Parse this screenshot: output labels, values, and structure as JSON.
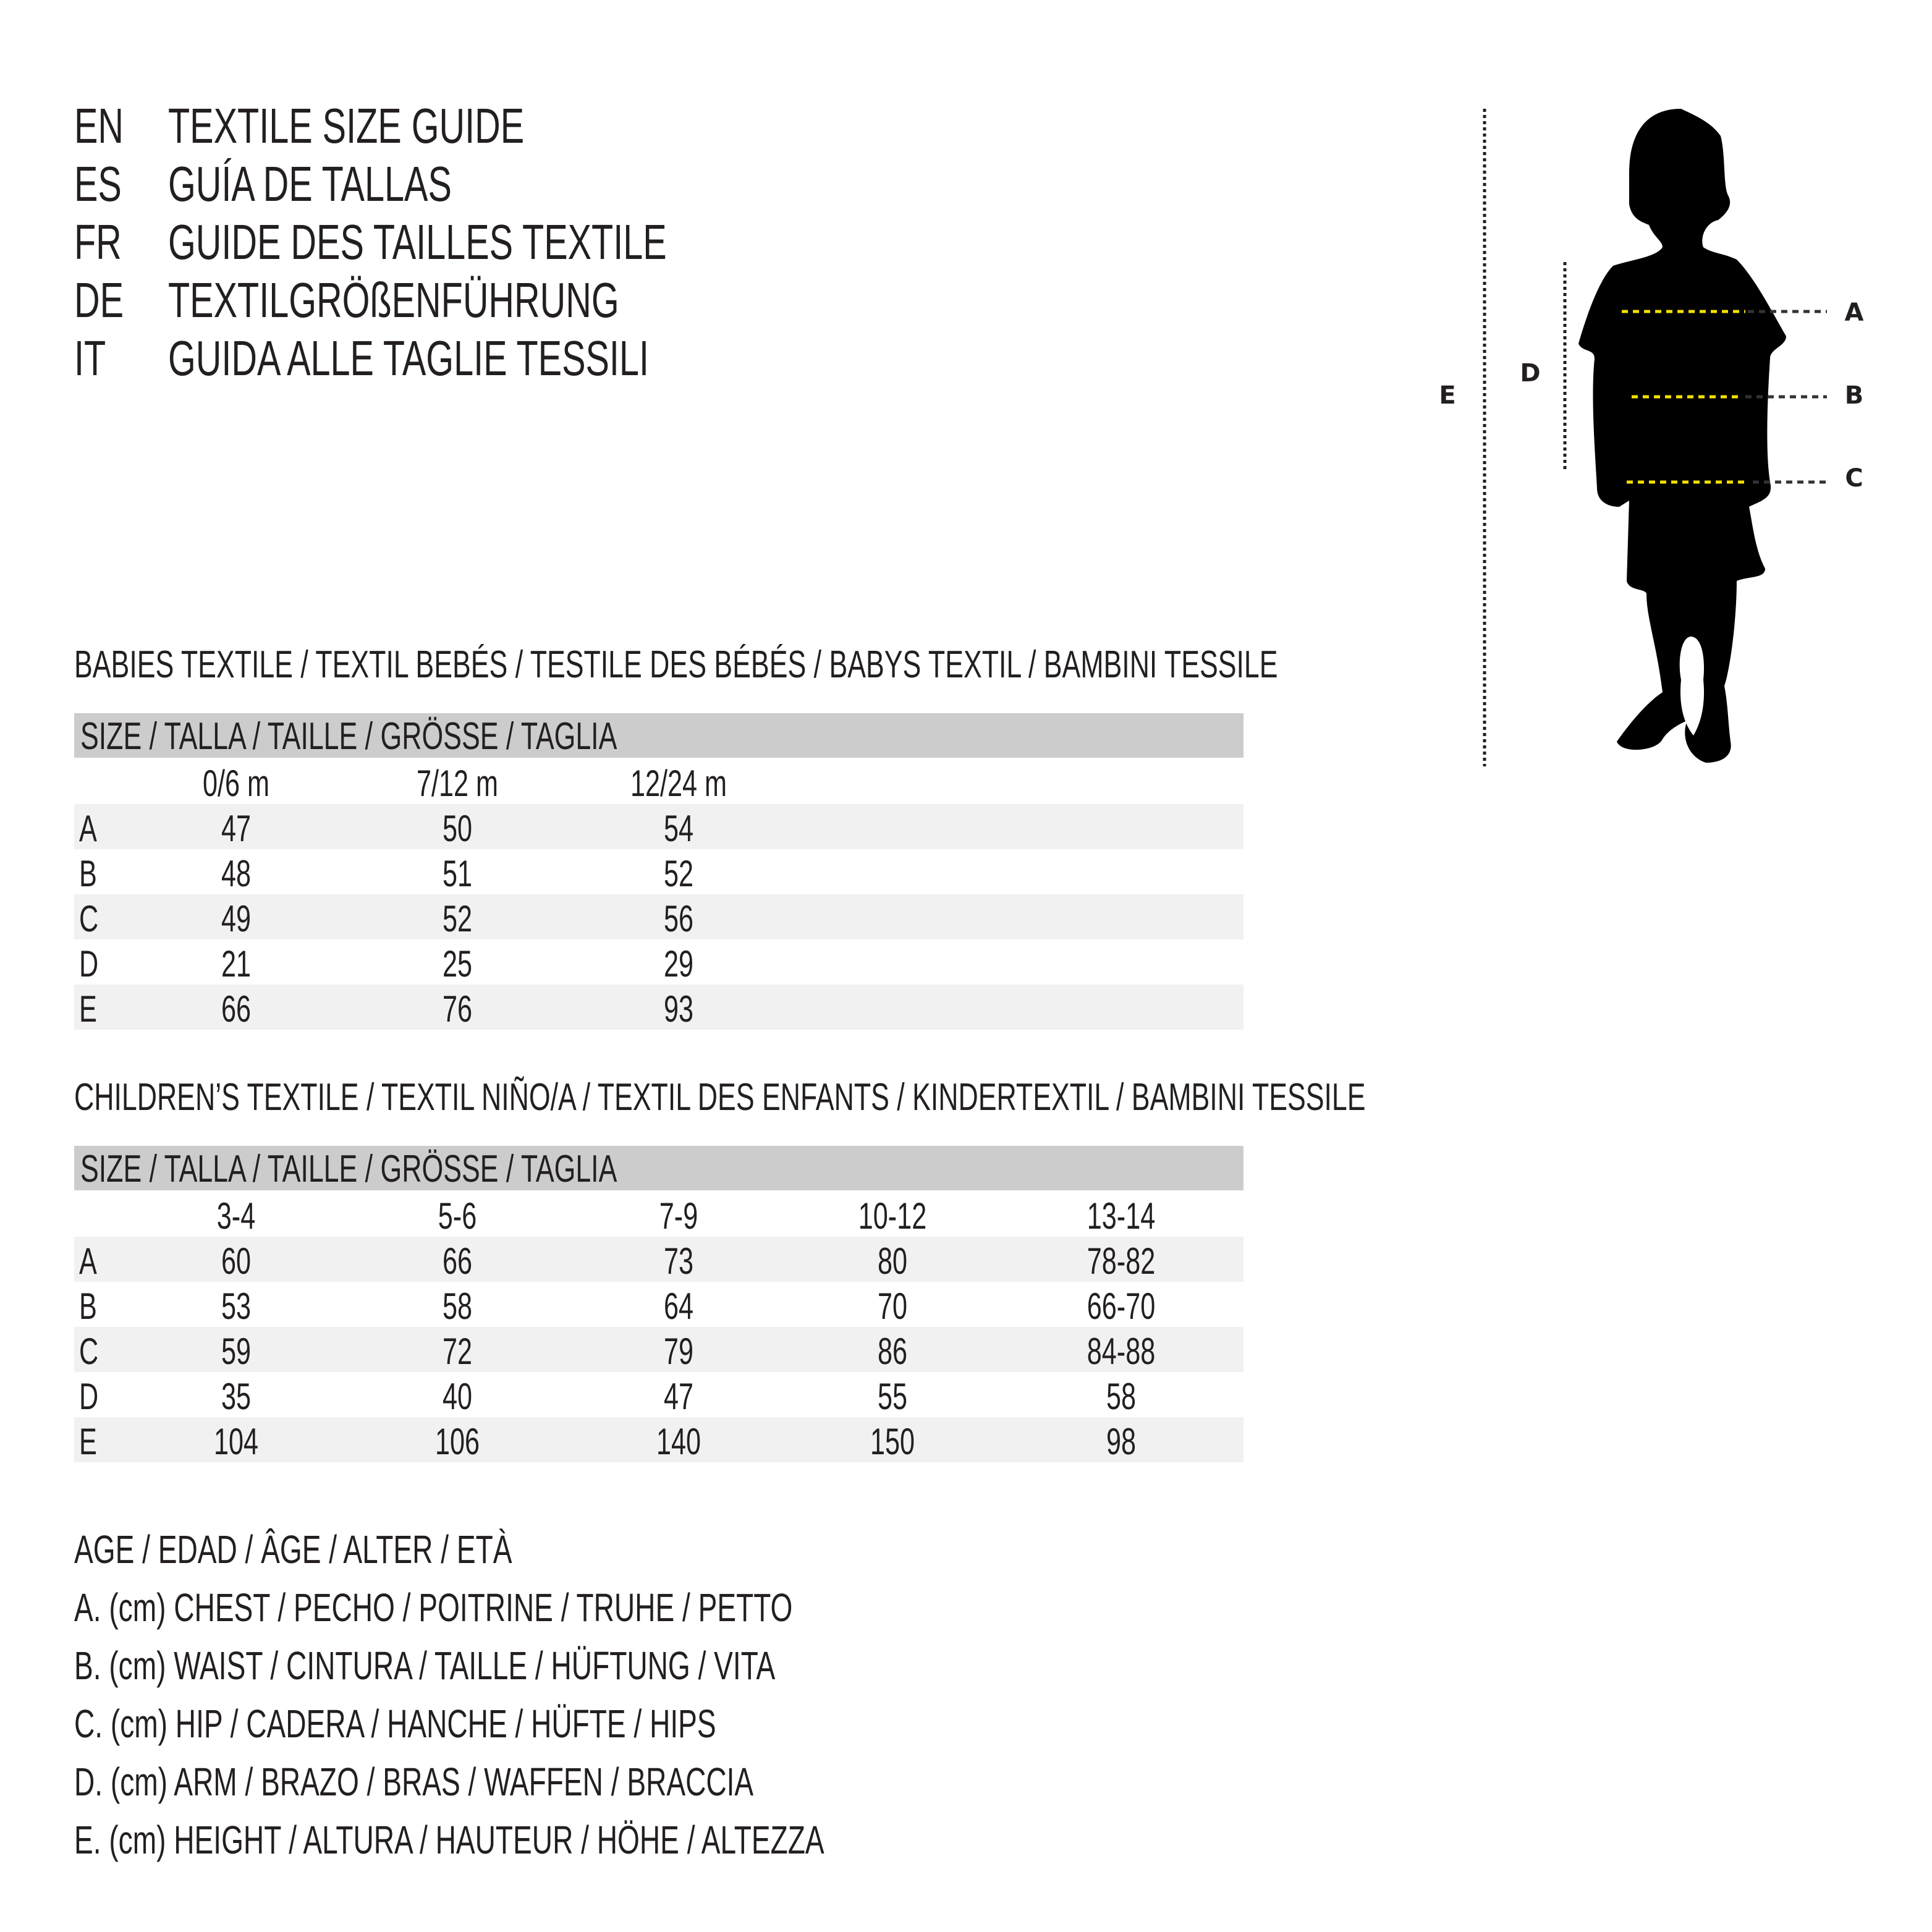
{
  "header": [
    {
      "code": "EN",
      "title": "TEXTILE SIZE GUIDE"
    },
    {
      "code": "ES",
      "title": "GUÍA DE TALLAS"
    },
    {
      "code": "FR",
      "title": "GUIDE DES TAILLES TEXTILE"
    },
    {
      "code": "DE",
      "title": "TEXTILGRÖßENFÜHRUNG"
    },
    {
      "code": "IT",
      "title": "GUIDA ALLE TAGLIE TESSILI"
    }
  ],
  "figure": {
    "labels": {
      "a": "A",
      "b": "B",
      "c": "C",
      "d": "D",
      "e": "E"
    },
    "accent_color": "#f5e000",
    "silhouette_color": "#000000"
  },
  "babies": {
    "title": "BABIES TEXTILE / TEXTIL BEBÉS / TESTILE DES BÉBÉS / BABYS TEXTIL / BAMBINI TESSILE",
    "size_header": "SIZE / TALLA / TAILLE / GRÖSSE / TAGLIA",
    "columns": [
      "0/6 m",
      "7/12 m",
      "12/24 m"
    ],
    "rows": [
      {
        "label": "A",
        "values": [
          "47",
          "50",
          "54"
        ]
      },
      {
        "label": "B",
        "values": [
          "48",
          "51",
          "52"
        ]
      },
      {
        "label": "C",
        "values": [
          "49",
          "52",
          "56"
        ]
      },
      {
        "label": "D",
        "values": [
          "21",
          "25",
          "29"
        ]
      },
      {
        "label": "E",
        "values": [
          "66",
          "76",
          "93"
        ]
      }
    ]
  },
  "children": {
    "title": "CHILDREN’S TEXTILE / TEXTIL NIÑO/A / TEXTIL DES ENFANTS / KINDERTEXTIL / BAMBINI TESSILE",
    "size_header": "SIZE / TALLA / TAILLE / GRÖSSE / TAGLIA",
    "columns": [
      "3-4",
      "5-6",
      "7-9",
      "10-12",
      "13-14"
    ],
    "rows": [
      {
        "label": "A",
        "values": [
          "60",
          "66",
          "73",
          "80",
          "78-82"
        ]
      },
      {
        "label": "B",
        "values": [
          "53",
          "58",
          "64",
          "70",
          "66-70"
        ]
      },
      {
        "label": "C",
        "values": [
          "59",
          "72",
          "79",
          "86",
          "84-88"
        ]
      },
      {
        "label": "D",
        "values": [
          "35",
          "40",
          "47",
          "55",
          "58"
        ]
      },
      {
        "label": "E",
        "values": [
          "104",
          "106",
          "140",
          "150",
          "98"
        ]
      }
    ]
  },
  "legend": [
    "AGE / EDAD / ÂGE / ALTER / ETÀ",
    "A. (cm) CHEST / PECHO / POITRINE / TRUHE / PETTO",
    "B. (cm) WAIST / CINTURA / TAILLE / HÜFTUNG / VITA",
    "C. (cm) HIP / CADERA / HANCHE / HÜFTE / HIPS",
    "D. (cm) ARM / BRAZO / BRAS / WAFFEN / BRACCIA",
    "E. (cm) HEIGHT / ALTURA / HAUTEUR / HÖHE / ALTEZZA"
  ]
}
